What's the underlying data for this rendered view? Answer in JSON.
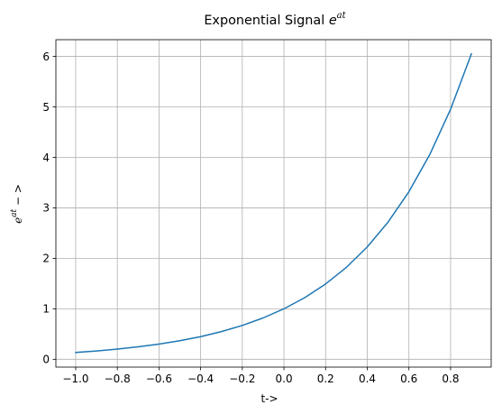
{
  "chart_data": {
    "type": "line",
    "title_main": "Exponential Signal ",
    "title_math_base": "e",
    "title_math_exp": "at",
    "xlabel": "t->",
    "ylabel_math_base": "e",
    "ylabel_math_exp": "at",
    "ylabel_suffix": " − >",
    "xlim": [
      -1.095,
      0.995
    ],
    "ylim": [
      -0.1548,
      6.3315
    ],
    "xticks": [
      -1.0,
      -0.8,
      -0.6,
      -0.4,
      -0.2,
      0.0,
      0.2,
      0.4,
      0.6,
      0.8
    ],
    "xtick_labels": [
      "−1.0",
      "−0.8",
      "−0.6",
      "−0.4",
      "−0.2",
      "0.0",
      "0.2",
      "0.4",
      "0.6",
      "0.8"
    ],
    "yticks": [
      0,
      1,
      2,
      3,
      4,
      5,
      6
    ],
    "ytick_labels": [
      "0",
      "1",
      "2",
      "3",
      "4",
      "5",
      "6"
    ],
    "grid": true,
    "series": [
      {
        "color": "#1f77b4",
        "x": [
          -1.0,
          -0.9,
          -0.8,
          -0.7,
          -0.6,
          -0.5,
          -0.4,
          -0.3,
          -0.2,
          -0.1,
          0.0,
          0.1,
          0.2,
          0.3,
          0.4,
          0.5,
          0.6,
          0.7,
          0.8,
          0.9
        ],
        "y": [
          0.135,
          0.165,
          0.202,
          0.247,
          0.301,
          0.368,
          0.449,
          0.549,
          0.67,
          0.819,
          1.0,
          1.221,
          1.492,
          1.822,
          2.226,
          2.718,
          3.32,
          4.055,
          4.953,
          6.05
        ]
      }
    ]
  }
}
